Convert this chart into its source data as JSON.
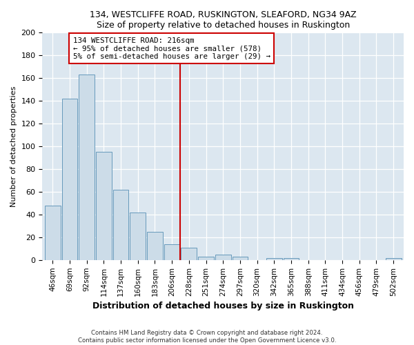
{
  "title": "134, WESTCLIFFE ROAD, RUSKINGTON, SLEAFORD, NG34 9AZ",
  "subtitle": "Size of property relative to detached houses in Ruskington",
  "xlabel": "Distribution of detached houses by size in Ruskington",
  "ylabel": "Number of detached properties",
  "bar_labels": [
    "46sqm",
    "69sqm",
    "92sqm",
    "114sqm",
    "137sqm",
    "160sqm",
    "183sqm",
    "206sqm",
    "228sqm",
    "251sqm",
    "274sqm",
    "297sqm",
    "320sqm",
    "342sqm",
    "365sqm",
    "388sqm",
    "411sqm",
    "434sqm",
    "456sqm",
    "479sqm",
    "502sqm"
  ],
  "bar_values": [
    48,
    142,
    163,
    95,
    62,
    42,
    25,
    14,
    11,
    3,
    5,
    3,
    0,
    2,
    2,
    0,
    0,
    0,
    0,
    0,
    2
  ],
  "bar_color": "#ccdce8",
  "bar_edge_color": "#6699bb",
  "vline_x": 7.5,
  "vline_color": "#cc0000",
  "annotation_text": "134 WESTCLIFFE ROAD: 216sqm\n← 95% of detached houses are smaller (578)\n5% of semi-detached houses are larger (29) →",
  "annotation_box_color": "#ffffff",
  "annotation_box_edge": "#cc0000",
  "ylim": [
    0,
    200
  ],
  "yticks": [
    0,
    20,
    40,
    60,
    80,
    100,
    120,
    140,
    160,
    180,
    200
  ],
  "footer": "Contains HM Land Registry data © Crown copyright and database right 2024.\nContains public sector information licensed under the Open Government Licence v3.0.",
  "bg_color": "#ffffff",
  "plot_bg_color": "#dce7f0"
}
